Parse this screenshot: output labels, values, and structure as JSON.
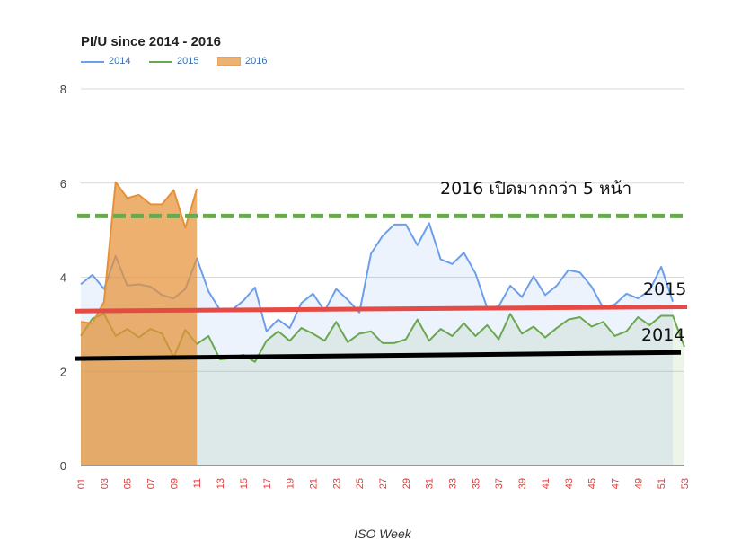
{
  "chart_data": {
    "type": "area",
    "title": "PI/U since 2014 - 2016",
    "xlabel": "ISO Week",
    "ylabel": "",
    "ylim": [
      0,
      8
    ],
    "y_ticks": [
      "0",
      "2",
      "4",
      "6",
      "8"
    ],
    "x_tick_labels": [
      "01",
      "03",
      "05",
      "07",
      "09",
      "11",
      "13",
      "15",
      "17",
      "19",
      "21",
      "23",
      "25",
      "27",
      "29",
      "31",
      "33",
      "35",
      "37",
      "39",
      "41",
      "43",
      "45",
      "47",
      "49",
      "51",
      "53"
    ],
    "grid": true,
    "legend_position": "top-left",
    "series": [
      {
        "name": "2014",
        "color": "#6d9eeb",
        "x": [
          1,
          2,
          3,
          4,
          5,
          6,
          7,
          8,
          9,
          10,
          11,
          12,
          13,
          14,
          15,
          16,
          17,
          18,
          19,
          20,
          21,
          22,
          23,
          24,
          25,
          26,
          27,
          28,
          29,
          30,
          31,
          32,
          33,
          34,
          35,
          36,
          37,
          38,
          39,
          40,
          41,
          42,
          43,
          44,
          45,
          46,
          47,
          48,
          49,
          50,
          51,
          52
        ],
        "values": [
          3.85,
          4.05,
          3.75,
          4.45,
          3.82,
          3.85,
          3.8,
          3.62,
          3.55,
          3.75,
          4.4,
          3.7,
          3.3,
          3.3,
          3.5,
          3.78,
          2.85,
          3.1,
          2.92,
          3.45,
          3.65,
          3.28,
          3.75,
          3.52,
          3.25,
          4.5,
          4.88,
          5.12,
          5.12,
          4.68,
          5.15,
          4.38,
          4.28,
          4.52,
          4.08,
          3.35,
          3.38,
          3.82,
          3.58,
          4.02,
          3.62,
          3.82,
          4.15,
          4.1,
          3.8,
          3.35,
          3.42,
          3.65,
          3.55,
          3.72,
          4.22,
          3.48
        ]
      },
      {
        "name": "2015",
        "color": "#6aa84f",
        "x": [
          1,
          2,
          3,
          4,
          5,
          6,
          7,
          8,
          9,
          10,
          11,
          12,
          13,
          14,
          15,
          16,
          17,
          18,
          19,
          20,
          21,
          22,
          23,
          24,
          25,
          26,
          27,
          28,
          29,
          30,
          31,
          32,
          33,
          34,
          35,
          36,
          37,
          38,
          39,
          40,
          41,
          42,
          43,
          44,
          45,
          46,
          47,
          48,
          49,
          50,
          51,
          52,
          53
        ],
        "values": [
          2.75,
          3.12,
          3.22,
          2.75,
          2.9,
          2.72,
          2.9,
          2.8,
          2.3,
          2.88,
          2.58,
          2.75,
          2.25,
          2.28,
          2.35,
          2.2,
          2.65,
          2.85,
          2.65,
          2.92,
          2.8,
          2.65,
          3.05,
          2.62,
          2.8,
          2.85,
          2.6,
          2.6,
          2.68,
          3.1,
          2.65,
          2.9,
          2.75,
          3.02,
          2.75,
          2.98,
          2.68,
          3.22,
          2.8,
          2.95,
          2.72,
          2.92,
          3.1,
          3.15,
          2.95,
          3.05,
          2.75,
          2.85,
          3.15,
          2.98,
          3.18,
          3.18,
          2.52
        ]
      },
      {
        "name": "2016",
        "color": "#e69138",
        "x": [
          1,
          2,
          3,
          4,
          5,
          6,
          7,
          8,
          9,
          10,
          11
        ],
        "values": [
          3.05,
          3.02,
          3.48,
          6.02,
          5.68,
          5.75,
          5.55,
          5.55,
          5.85,
          5.05,
          5.88
        ]
      }
    ],
    "reference_lines": [
      {
        "label": "2016 เปิดมากกว่า 5 หน้า",
        "y": 5.3,
        "style": "dashed",
        "color": "#6aa84f"
      },
      {
        "label": "2015",
        "y_start": 3.28,
        "y_end": 3.37,
        "color": "#e64a45"
      },
      {
        "label": "2014",
        "y_start": 2.27,
        "y_end": 2.4,
        "color": "#000000"
      }
    ]
  }
}
